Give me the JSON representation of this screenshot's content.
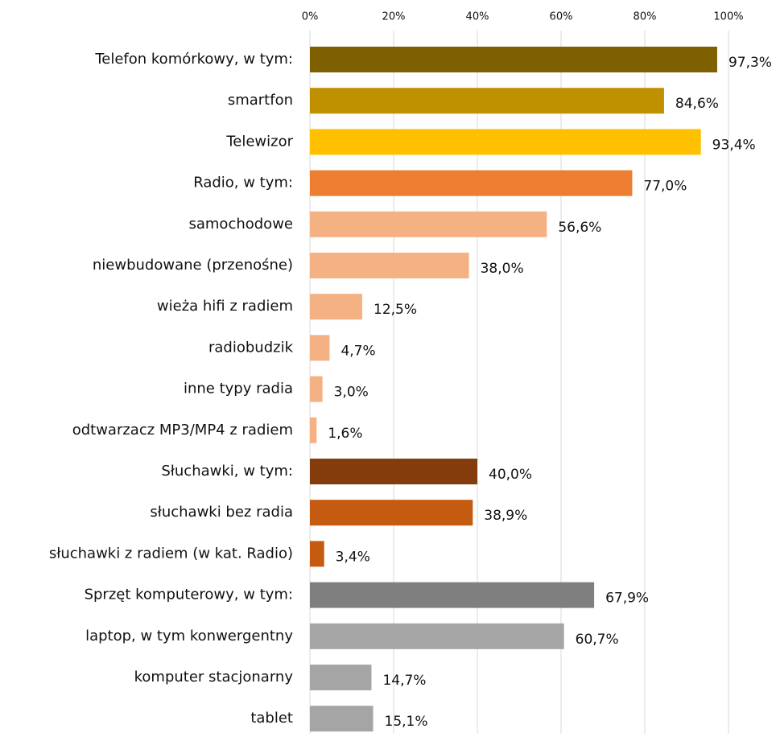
{
  "chart_data": {
    "type": "bar",
    "orientation": "horizontal",
    "categories": [
      "Telefon komórkowy, w tym:",
      "smartfon",
      "Telewizor",
      "Radio, w tym:",
      "samochodowe",
      "niewbudowane (przenośne)",
      "wieża hifi z radiem",
      "radiobudzik",
      "inne typy radia",
      "odtwarzacz MP3/MP4 z radiem",
      "Słuchawki, w tym:",
      "słuchawki bez radia",
      "słuchawki z radiem (w kat. Radio)",
      "Sprzęt komputerowy, w tym:",
      "laptop, w tym konwergentny",
      "komputer stacjonarny",
      "tablet"
    ],
    "values": [
      97.3,
      84.6,
      93.4,
      77.0,
      56.6,
      38.0,
      12.5,
      4.7,
      3.0,
      1.6,
      40.0,
      38.9,
      3.4,
      67.9,
      60.7,
      14.7,
      15.1
    ],
    "value_labels": [
      "97,3%",
      "84,6%",
      "93,4%",
      "77,0%",
      "56,6%",
      "38,0%",
      "12,5%",
      "4,7%",
      "3,0%",
      "1,6%",
      "40,0%",
      "38,9%",
      "3,4%",
      "67,9%",
      "60,7%",
      "14,7%",
      "15,1%"
    ],
    "colors": [
      "#7f6000",
      "#bf9000",
      "#ffc000",
      "#ed7d31",
      "#f4b183",
      "#f4b183",
      "#f4b183",
      "#f4b183",
      "#f4b183",
      "#f4b183",
      "#843c0c",
      "#c55a11",
      "#c55a11",
      "#7f7f7f",
      "#a5a5a5",
      "#a5a5a5",
      "#a5a5a5"
    ],
    "xlim": [
      0,
      100
    ],
    "xticks": [
      {
        "value": 0,
        "label": "0%"
      },
      {
        "value": 20,
        "label": "20%"
      },
      {
        "value": 40,
        "label": "40%"
      },
      {
        "value": 60,
        "label": "60%"
      },
      {
        "value": 80,
        "label": "80%"
      },
      {
        "value": 100,
        "label": "100%"
      }
    ],
    "grid": true
  }
}
